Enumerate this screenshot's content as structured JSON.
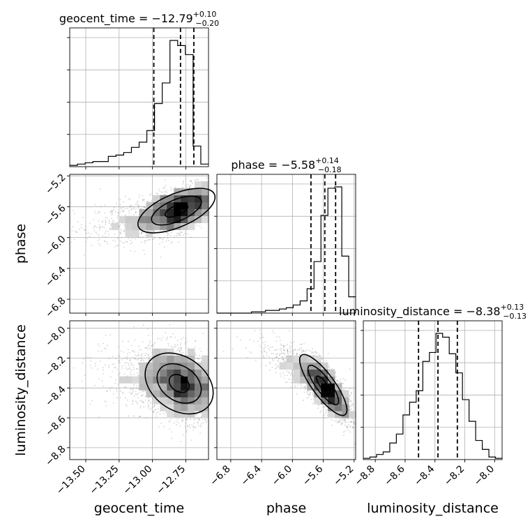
{
  "chart_data": {
    "type": "corner",
    "parameters": [
      "geocent_time",
      "phase",
      "luminosity_distance"
    ],
    "axis_labels": {
      "geocent_time": "geocent_time",
      "phase": "phase",
      "luminosity_distance": "luminosity_distance"
    },
    "ranges": {
      "geocent_time": [
        -13.62,
        -12.58
      ],
      "phase": [
        -6.98,
        -5.18
      ],
      "luminosity_distance": [
        -8.88,
        -7.95
      ]
    },
    "ticks": {
      "geocent_time": [
        -13.5,
        -13.25,
        -13.0,
        -12.75
      ],
      "phase": [
        -6.8,
        -6.4,
        -6.0,
        -5.6,
        -5.2
      ],
      "luminosity_distance": [
        -8.8,
        -8.6,
        -8.4,
        -8.2,
        -8.0
      ]
    },
    "tick_labels": {
      "geocent_time": [
        "−13.50",
        "−13.25",
        "−13.00",
        "−12.75"
      ],
      "phase": [
        "−6.8",
        "−6.4",
        "−6.0",
        "−5.6",
        "−5.2"
      ],
      "luminosity_distance": [
        "−8.8",
        "−8.6",
        "−8.4",
        "−8.2",
        "−8.0"
      ]
    },
    "titles": {
      "geocent_time": {
        "name": "geocent_time",
        "median": "−12.79",
        "plus": "+0.10",
        "minus": "−0.20"
      },
      "phase": {
        "name": "phase",
        "median": "−5.58",
        "plus": "+0.14",
        "minus": "−0.18"
      },
      "luminosity_distance": {
        "name": "luminosity_distance",
        "median": "−8.38",
        "plus": "+0.13",
        "minus": "−0.13"
      }
    },
    "quantiles": {
      "geocent_time": [
        -12.99,
        -12.79,
        -12.69
      ],
      "phase": [
        -5.76,
        -5.58,
        -5.44
      ],
      "luminosity_distance": [
        -8.51,
        -8.38,
        -8.25
      ]
    },
    "histograms": {
      "geocent_time": {
        "lo": -13.62,
        "hi": -12.58,
        "counts": [
          0.01,
          0.02,
          0.03,
          0.04,
          0.04,
          0.08,
          0.09,
          0.11,
          0.15,
          0.19,
          0.28,
          0.49,
          0.65,
          0.98,
          0.94,
          0.87,
          0.16,
          0.02
        ]
      },
      "phase": {
        "lo": -6.98,
        "hi": -5.18,
        "counts": [
          0,
          0,
          0,
          0,
          0,
          0.01,
          0.01,
          0.02,
          0.02,
          0.03,
          0.04,
          0.06,
          0.09,
          0.18,
          0.38,
          0.72,
          0.92,
          0.93,
          0.42,
          0.12
        ]
      },
      "luminosity_distance": {
        "lo": -8.88,
        "hi": -7.95,
        "counts": [
          0.01,
          0.02,
          0.04,
          0.06,
          0.13,
          0.2,
          0.35,
          0.45,
          0.54,
          0.77,
          0.84,
          0.99,
          0.96,
          0.83,
          0.68,
          0.47,
          0.3,
          0.15,
          0.08,
          0.02,
          0.01
        ]
      }
    },
    "pairs": [
      {
        "x": "geocent_time",
        "y": "phase",
        "mean": [
          -12.82,
          -5.65
        ],
        "sd": [
          0.17,
          0.17
        ],
        "corr": 0.6
      },
      {
        "x": "geocent_time",
        "y": "luminosity_distance",
        "mean": [
          -12.8,
          -8.37
        ],
        "sd": [
          0.15,
          0.12
        ],
        "corr": -0.3
      },
      {
        "x": "phase",
        "y": "luminosity_distance",
        "mean": [
          -5.6,
          -8.38
        ],
        "sd": [
          0.18,
          0.12
        ],
        "corr": -0.82
      }
    ],
    "grid": true,
    "colors": {
      "line": "#000000",
      "grid": "#b0b0b0",
      "points": "#808080"
    }
  }
}
